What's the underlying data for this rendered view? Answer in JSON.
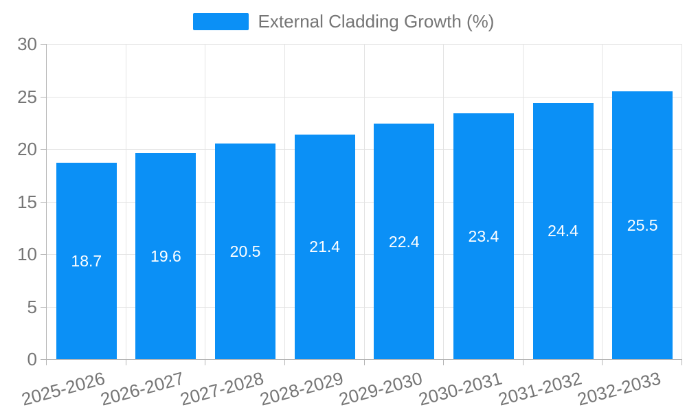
{
  "chart_data": {
    "type": "bar",
    "title": "",
    "legend_entries": [
      "External Cladding Growth (%)"
    ],
    "legend_position": "top-center",
    "categories": [
      "2025-2026",
      "2026-2027",
      "2027-2028",
      "2028-2029",
      "2029-2030",
      "2030-2031",
      "2031-2032",
      "2032-2033"
    ],
    "series": [
      {
        "name": "External Cladding Growth (%)",
        "values": [
          18.7,
          19.6,
          20.5,
          21.4,
          22.4,
          23.4,
          24.4,
          25.5
        ]
      }
    ],
    "value_labels": [
      "18.7",
      "19.6",
      "20.5",
      "21.4",
      "22.4",
      "23.4",
      "24.4",
      "25.5"
    ],
    "xlabel": "",
    "ylabel": "",
    "ylim": [
      0,
      30
    ],
    "ytick_step": 5,
    "ytick_labels": [
      "0",
      "5",
      "10",
      "15",
      "20",
      "25",
      "30"
    ],
    "grid": true,
    "colors": {
      "bar": "#0b90f6",
      "value_label": "#ffffff",
      "axis_text": "#757575",
      "grid_line": "#e3e3e3",
      "axis_line": "#b4b4b4",
      "background": "#ffffff"
    }
  }
}
